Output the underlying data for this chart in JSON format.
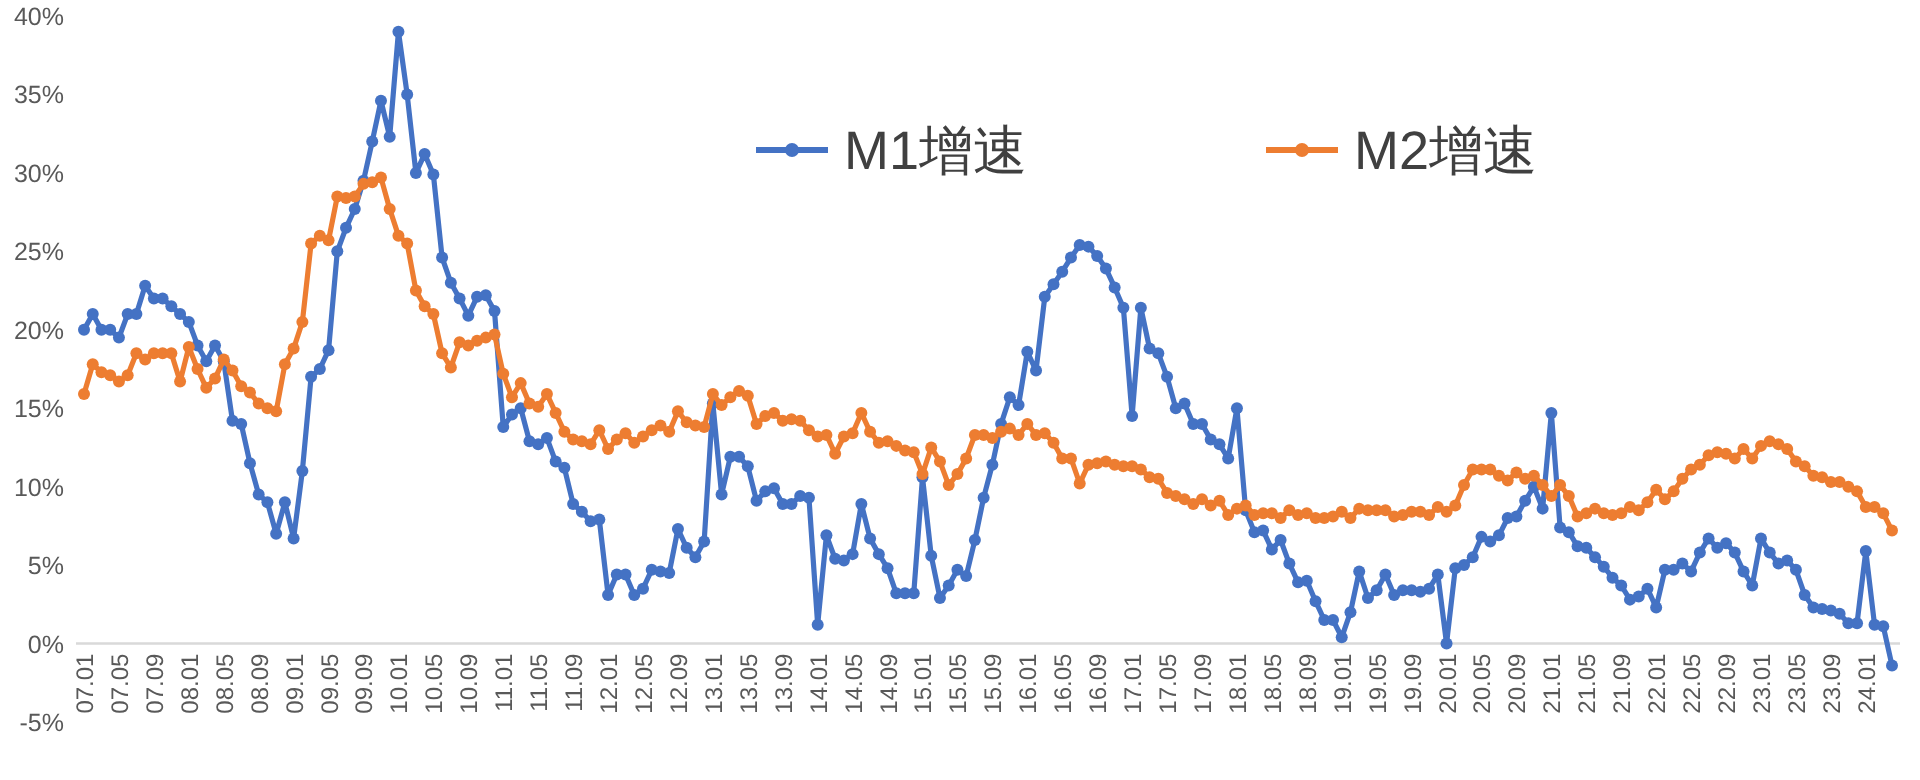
{
  "chart_data": {
    "type": "line",
    "categories": [
      "07.01",
      null,
      null,
      null,
      "07.05",
      null,
      null,
      null,
      "07.09",
      null,
      null,
      null,
      "08.01",
      null,
      null,
      null,
      "08.05",
      null,
      null,
      null,
      "08.09",
      null,
      null,
      null,
      "09.01",
      null,
      null,
      null,
      "09.05",
      null,
      null,
      null,
      "09.09",
      null,
      null,
      null,
      "10.01",
      null,
      null,
      null,
      "10.05",
      null,
      null,
      null,
      "10.09",
      null,
      null,
      null,
      "11.01",
      null,
      null,
      null,
      "11.05",
      null,
      null,
      null,
      "11.09",
      null,
      null,
      null,
      "12.01",
      null,
      null,
      null,
      "12.05",
      null,
      null,
      null,
      "12.09",
      null,
      null,
      null,
      "13.01",
      null,
      null,
      null,
      "13.05",
      null,
      null,
      null,
      "13.09",
      null,
      null,
      null,
      "14.01",
      null,
      null,
      null,
      "14.05",
      null,
      null,
      null,
      "14.09",
      null,
      null,
      null,
      "15.01",
      null,
      null,
      null,
      "15.05",
      null,
      null,
      null,
      "15.09",
      null,
      null,
      null,
      "16.01",
      null,
      null,
      null,
      "16.05",
      null,
      null,
      null,
      "16.09",
      null,
      null,
      null,
      "17.01",
      null,
      null,
      null,
      "17.05",
      null,
      null,
      null,
      "17.09",
      null,
      null,
      null,
      "18.01",
      null,
      null,
      null,
      "18.05",
      null,
      null,
      null,
      "18.09",
      null,
      null,
      null,
      "19.01",
      null,
      null,
      null,
      "19.05",
      null,
      null,
      null,
      "19.09",
      null,
      null,
      null,
      "20.01",
      null,
      null,
      null,
      "20.05",
      null,
      null,
      null,
      "20.09",
      null,
      null,
      null,
      "21.01",
      null,
      null,
      null,
      "21.05",
      null,
      null,
      null,
      "21.09",
      null,
      null,
      null,
      "22.01",
      null,
      null,
      null,
      "22.05",
      null,
      null,
      null,
      "22.09",
      null,
      null,
      null,
      "23.01",
      null,
      null,
      null,
      "23.05",
      null,
      null,
      null,
      "23.09",
      null,
      null,
      null,
      "24.01",
      null,
      null,
      null
    ],
    "series": [
      {
        "name": "M1增速",
        "color": "#4472c4",
        "values": [
          20,
          21,
          20,
          20,
          19.5,
          21,
          21,
          22.8,
          22,
          22,
          21.5,
          21,
          20.5,
          19,
          18,
          19,
          18,
          14.2,
          14,
          11.5,
          9.5,
          9,
          7,
          9,
          6.7,
          11,
          17,
          17.5,
          18.7,
          25,
          26.5,
          27.7,
          29.5,
          32,
          34.6,
          32.3,
          39,
          35,
          30,
          31.2,
          29.9,
          24.6,
          23,
          22,
          20.9,
          22.1,
          22.2,
          21.2,
          13.8,
          14.6,
          15,
          12.9,
          12.7,
          13.1,
          11.6,
          11.2,
          8.9,
          8.4,
          7.8,
          7.9,
          3.1,
          4.4,
          4.4,
          3.1,
          3.5,
          4.7,
          4.6,
          4.5,
          7.3,
          6.1,
          5.5,
          6.5,
          15.3,
          9.5,
          11.9,
          11.9,
          11.3,
          9.1,
          9.7,
          9.9,
          8.9,
          8.9,
          9.4,
          9.3,
          1.2,
          6.9,
          5.4,
          5.3,
          5.7,
          8.9,
          6.7,
          5.7,
          4.8,
          3.2,
          3.2,
          3.2,
          10.6,
          5.6,
          2.9,
          3.7,
          4.7,
          4.3,
          6.6,
          9.3,
          11.4,
          14,
          15.7,
          15.2,
          18.6,
          17.4,
          22.1,
          22.9,
          23.7,
          24.6,
          25.4,
          25.3,
          24.7,
          23.9,
          22.7,
          21.4,
          14.5,
          21.4,
          18.8,
          18.5,
          17,
          15,
          15.3,
          14,
          14,
          13,
          12.7,
          11.8,
          15,
          8.5,
          7.1,
          7.2,
          6,
          6.6,
          5.1,
          3.9,
          4,
          2.7,
          1.5,
          1.5,
          0.4,
          2,
          4.6,
          2.9,
          3.4,
          4.4,
          3.1,
          3.4,
          3.4,
          3.3,
          3.5,
          4.4,
          0,
          4.8,
          5,
          5.5,
          6.8,
          6.5,
          6.9,
          8,
          8.1,
          9.1,
          10,
          8.6,
          14.7,
          7.4,
          7.1,
          6.2,
          6.1,
          5.5,
          4.9,
          4.2,
          3.7,
          2.8,
          3,
          3.5,
          2.3,
          4.7,
          4.7,
          5.1,
          4.6,
          5.8,
          6.7,
          6.1,
          6.4,
          5.8,
          4.6,
          3.7,
          6.7,
          5.8,
          5.1,
          5.3,
          4.7,
          3.1,
          2.3,
          2.2,
          2.1,
          1.9,
          1.3,
          1.3,
          5.9,
          1.2,
          1.1,
          -1.4
        ]
      },
      {
        "name": "M2增速",
        "color": "#ed7d31",
        "values": [
          15.9,
          17.8,
          17.3,
          17.1,
          16.7,
          17.1,
          18.5,
          18.1,
          18.5,
          18.5,
          18.5,
          16.7,
          18.9,
          17.5,
          16.3,
          16.9,
          18.1,
          17.4,
          16.4,
          16,
          15.3,
          15,
          14.8,
          17.8,
          18.8,
          20.5,
          25.5,
          26,
          25.7,
          28.5,
          28.4,
          28.5,
          29.3,
          29.4,
          29.7,
          27.7,
          26,
          25.5,
          22.5,
          21.5,
          21,
          18.5,
          17.6,
          19.2,
          19,
          19.3,
          19.5,
          19.7,
          17.2,
          15.7,
          16.6,
          15.3,
          15.1,
          15.9,
          14.7,
          13.5,
          13,
          12.9,
          12.7,
          13.6,
          12.4,
          13,
          13.4,
          12.8,
          13.2,
          13.6,
          13.9,
          13.5,
          14.8,
          14.1,
          13.9,
          13.8,
          15.9,
          15.2,
          15.7,
          16.1,
          15.8,
          14,
          14.5,
          14.7,
          14.2,
          14.3,
          14.2,
          13.6,
          13.2,
          13.3,
          12.1,
          13.2,
          13.4,
          14.7,
          13.5,
          12.8,
          12.9,
          12.6,
          12.3,
          12.2,
          10.8,
          12.5,
          11.6,
          10.1,
          10.8,
          11.8,
          13.3,
          13.3,
          13.1,
          13.5,
          13.7,
          13.3,
          14,
          13.3,
          13.4,
          12.8,
          11.8,
          11.8,
          10.2,
          11.4,
          11.5,
          11.6,
          11.4,
          11.3,
          11.3,
          11.1,
          10.6,
          10.5,
          9.6,
          9.4,
          9.2,
          8.9,
          9.2,
          8.8,
          9.1,
          8.2,
          8.6,
          8.8,
          8.2,
          8.3,
          8.3,
          8,
          8.5,
          8.2,
          8.3,
          8,
          8,
          8.1,
          8.4,
          8,
          8.6,
          8.5,
          8.5,
          8.5,
          8.1,
          8.2,
          8.4,
          8.4,
          8.2,
          8.7,
          8.4,
          8.8,
          10.1,
          11.1,
          11.1,
          11.1,
          10.7,
          10.4,
          10.9,
          10.5,
          10.7,
          10.1,
          9.4,
          10.1,
          9.4,
          8.1,
          8.3,
          8.6,
          8.3,
          8.2,
          8.3,
          8.7,
          8.5,
          9,
          9.8,
          9.2,
          9.7,
          10.5,
          11.1,
          11.4,
          12,
          12.2,
          12.1,
          11.8,
          12.4,
          11.8,
          12.6,
          12.9,
          12.7,
          12.4,
          11.6,
          11.3,
          10.7,
          10.6,
          10.3,
          10.3,
          10,
          9.7,
          8.7,
          8.7,
          8.3,
          7.2
        ]
      }
    ],
    "ylim": [
      -5,
      40
    ],
    "yticks": [
      {
        "value": -5,
        "label": "-5%"
      },
      {
        "value": 0,
        "label": "0%"
      },
      {
        "value": 5,
        "label": "5%"
      },
      {
        "value": 10,
        "label": "10%"
      },
      {
        "value": 15,
        "label": "15%"
      },
      {
        "value": 20,
        "label": "20%"
      },
      {
        "value": 25,
        "label": "25%"
      },
      {
        "value": 30,
        "label": "30%"
      },
      {
        "value": 35,
        "label": "35%"
      },
      {
        "value": 40,
        "label": "40%"
      }
    ],
    "legend": "top",
    "marker": "circle",
    "grid": false
  }
}
